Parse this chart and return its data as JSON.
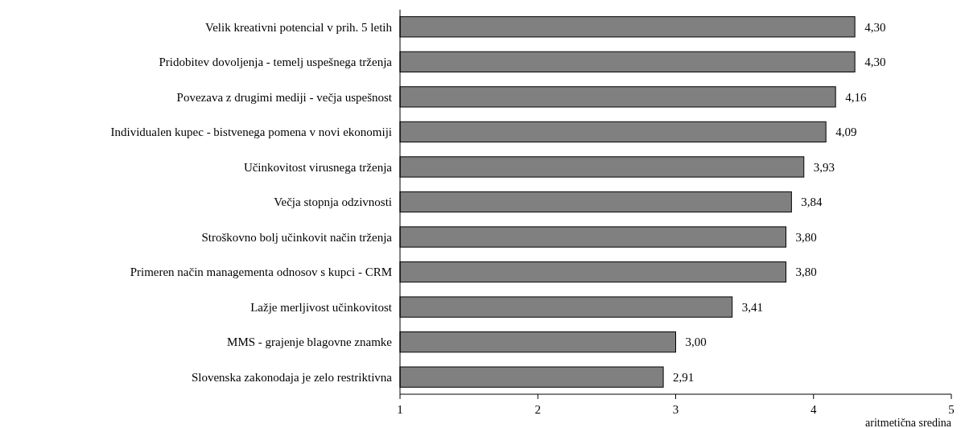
{
  "chart_data": {
    "type": "bar",
    "orientation": "horizontal",
    "xlabel": "aritmetična sredina",
    "categories": [
      "Velik kreativni potencial v prih. 5 letih",
      "Pridobitev dovoljenja - temelj uspešnega trženja",
      "Povezava z drugimi mediji - večja uspešnost",
      "Individualen kupec - bistvenega pomena v novi ekonomiji",
      "Učinkovitost virusnega trženja",
      "Večja stopnja odzivnosti",
      "Stroškovno bolj učinkovit način trženja",
      "Primeren način managementa odnosov s kupci - CRM",
      "Lažje merljivost učinkovitost",
      "MMS - grajenje blagovne znamke",
      "Slovenska zakonodaja je zelo restriktivna"
    ],
    "values": [
      4.3,
      4.3,
      4.16,
      4.09,
      3.93,
      3.84,
      3.8,
      3.8,
      3.41,
      3.0,
      2.91
    ],
    "value_labels": [
      "4,30",
      "4,30",
      "4,16",
      "4,09",
      "3,93",
      "3,84",
      "3,80",
      "3,80",
      "3,41",
      "3,00",
      "2,91"
    ],
    "color": "#808080",
    "xlim": [
      1,
      5
    ],
    "xticks": [
      1,
      2,
      3,
      4,
      5
    ]
  }
}
